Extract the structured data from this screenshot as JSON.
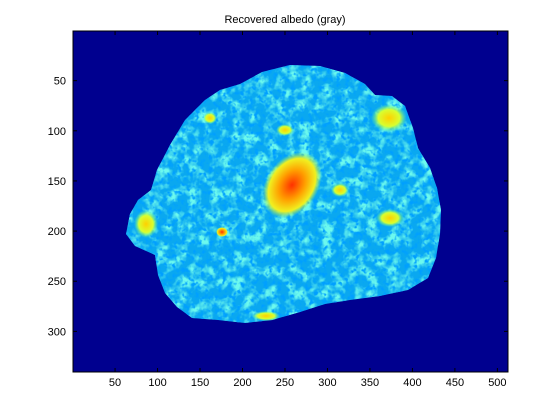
{
  "chart_data": {
    "type": "heatmap",
    "title": "Recovered albedo (gray)",
    "xlabel": "",
    "ylabel": "",
    "x_ticks": [
      50,
      100,
      150,
      200,
      250,
      300,
      350,
      400,
      450,
      500
    ],
    "y_ticks": [
      50,
      100,
      150,
      200,
      250,
      300
    ],
    "xlim": [
      0.5,
      512.5
    ],
    "ylim": [
      0.5,
      340.5
    ],
    "y_reversed": true,
    "colormap": "jet",
    "background_color": "#00008f",
    "grid": false,
    "legend": "none"
  }
}
